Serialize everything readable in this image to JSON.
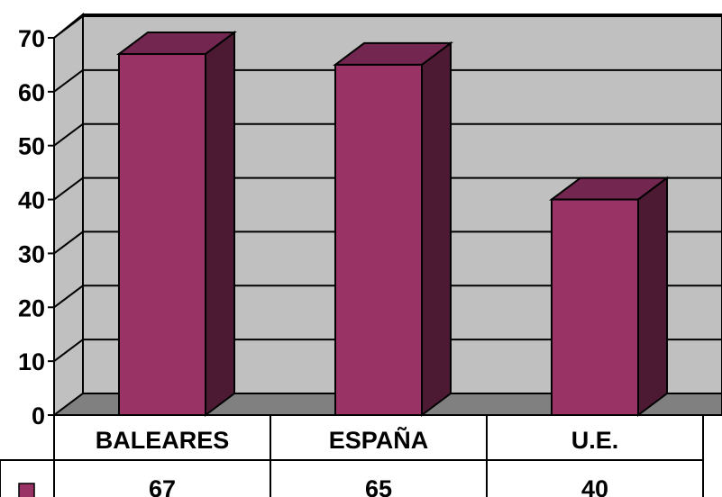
{
  "chart_data": {
    "type": "bar",
    "categories": [
      "BALEARES",
      "ESPAÑA",
      "U.E."
    ],
    "values": [
      67,
      65,
      40
    ],
    "ylim": [
      0,
      70
    ],
    "yticks": [
      "0",
      "10",
      "20",
      "30",
      "40",
      "50",
      "60",
      "70"
    ],
    "value_labels": [
      "67",
      "65",
      "40"
    ],
    "grid": true,
    "legend": "data-table",
    "colors": {
      "bar_front": "#993366",
      "bar_side": "#4D1A33",
      "bar_top": "#732650",
      "wall": "#C0C0C0",
      "floor": "#808080"
    }
  }
}
